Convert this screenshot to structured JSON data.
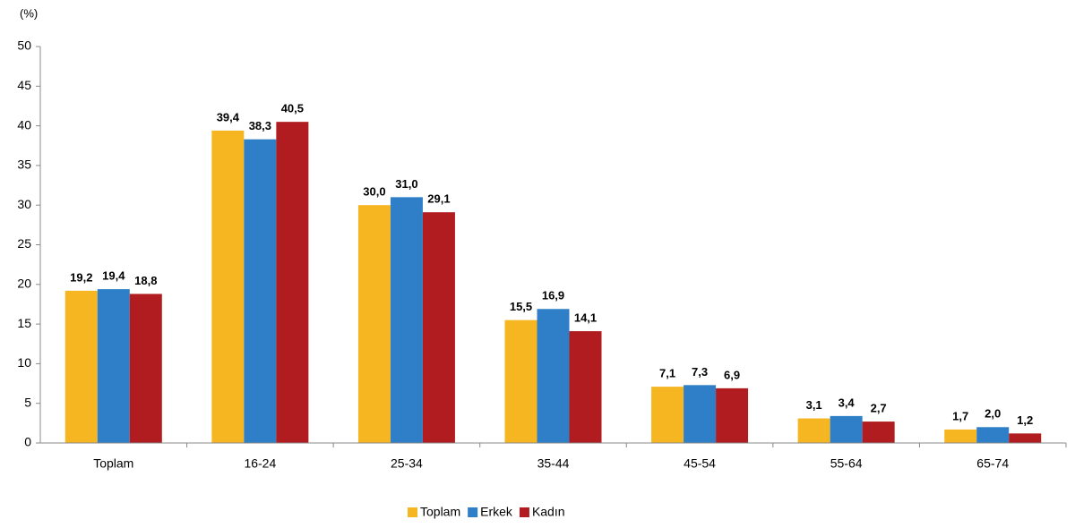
{
  "chart_data": {
    "type": "bar",
    "y_unit_label": "(%)",
    "categories": [
      "Toplam",
      "16-24",
      "25-34",
      "35-44",
      "45-54",
      "55-64",
      "65-74"
    ],
    "series": [
      {
        "name": "Toplam",
        "color": "#f6b622",
        "values": [
          19.2,
          39.4,
          30.0,
          15.5,
          7.1,
          3.1,
          1.7
        ],
        "value_labels": [
          "19,2",
          "39,4",
          "30,0",
          "15,5",
          "7,1",
          "3,1",
          "1,7"
        ]
      },
      {
        "name": "Erkek",
        "color": "#2e7fc7",
        "values": [
          19.4,
          38.3,
          31.0,
          16.9,
          7.3,
          3.4,
          2.0
        ],
        "value_labels": [
          "19,4",
          "38,3",
          "31,0",
          "16,9",
          "7,3",
          "3,4",
          "2,0"
        ]
      },
      {
        "name": "Kadın",
        "color": "#b01c1f",
        "values": [
          18.8,
          40.5,
          29.1,
          14.1,
          6.9,
          2.7,
          1.2
        ],
        "value_labels": [
          "18,8",
          "40,5",
          "29,1",
          "14,1",
          "6,9",
          "2,7",
          "1,2"
        ]
      }
    ],
    "ylim": [
      0,
      50
    ],
    "yticks": [
      0,
      5,
      10,
      15,
      20,
      25,
      30,
      35,
      40,
      45,
      50
    ],
    "grid": false,
    "legend": "bottom"
  }
}
